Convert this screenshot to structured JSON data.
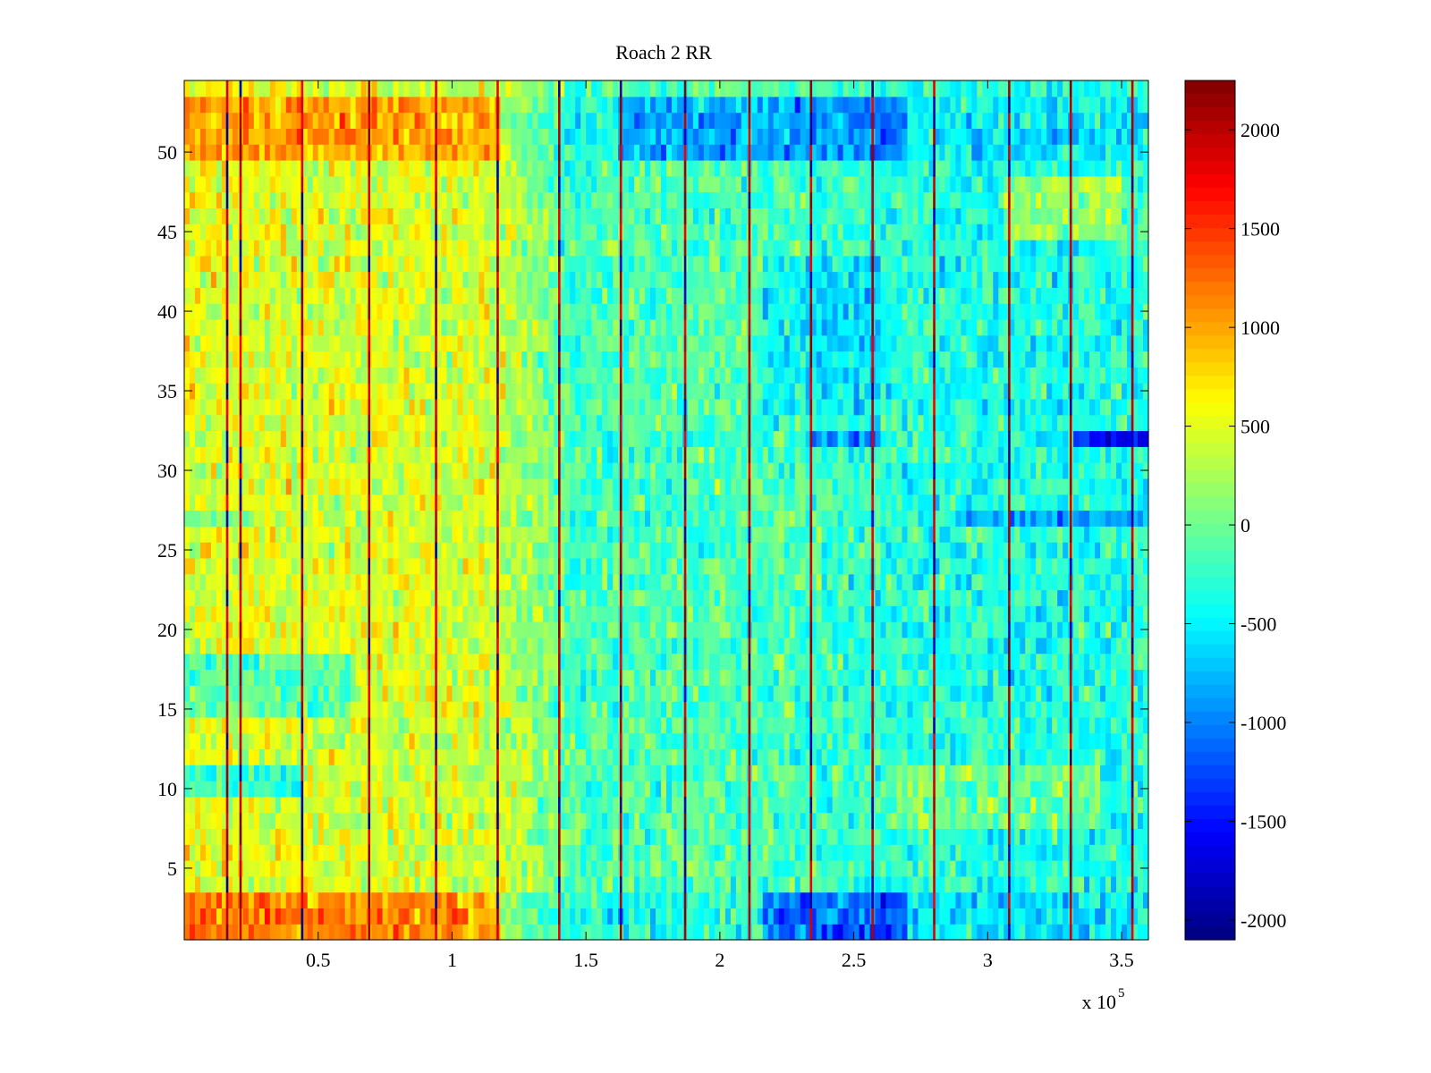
{
  "chart_data": {
    "type": "heatmap",
    "title": "Roach 2 RR",
    "xlabel": "",
    "ylabel": "",
    "x_range": [
      0,
      360000
    ],
    "y_range": [
      0.5,
      54.5
    ],
    "x_ticks": [
      50000,
      100000,
      150000,
      200000,
      250000,
      300000,
      350000
    ],
    "x_tick_labels": [
      "0.5",
      "1",
      "1.5",
      "2",
      "2.5",
      "3",
      "3.5"
    ],
    "x_exponent_label": "x 10",
    "x_exponent": "5",
    "y_ticks": [
      5,
      10,
      15,
      20,
      25,
      30,
      35,
      40,
      45,
      50
    ],
    "y_tick_labels": [
      "5",
      "10",
      "15",
      "20",
      "25",
      "30",
      "35",
      "40",
      "45",
      "50"
    ],
    "rows": 54,
    "colormap": "jet",
    "color_range": [
      -2100,
      2250
    ],
    "colorbar_ticks": [
      2000,
      1500,
      1000,
      500,
      0,
      -500,
      -1000,
      -1500,
      -2000
    ],
    "colorbar_tick_labels": [
      "2000",
      "1500",
      "1000",
      "500",
      "0",
      "-500",
      "-1000",
      "-1500",
      "-2000"
    ],
    "approx_overall_trend": "warm (≈ +300 to +800) at x < 1.2e5, cooler (≈ -300 to -600) at x > 1.4e5",
    "strong_vertical_lines_x": [
      16000,
      21000,
      44000,
      69000,
      94000,
      117000,
      140000,
      163000,
      187000,
      211000,
      234000,
      257000,
      280000,
      308000,
      331000,
      354000
    ],
    "row_bands": [
      {
        "rows": [
          1,
          3
        ],
        "note": "warm at left, cold near x≈2.5e5"
      },
      {
        "rows": [
          10,
          11
        ],
        "note": "cold at left"
      },
      {
        "rows": [
          15,
          18
        ],
        "note": "cool band at left"
      },
      {
        "rows": [
          27,
          27
        ],
        "note": "cool stripe"
      },
      {
        "rows": [
          32,
          32
        ],
        "note": "cold at right"
      },
      {
        "rows": [
          50,
          53
        ],
        "note": "warm at left, cold near x≈1.8e5–2.6e5"
      }
    ]
  }
}
